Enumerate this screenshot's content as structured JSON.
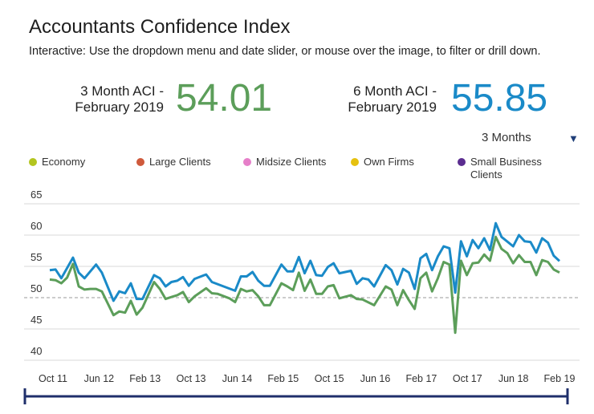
{
  "header": {
    "title": "Accountants Confidence Index",
    "subtitle": "Interactive: Use the dropdown menu and date slider, or mouse over the image, to filter or drill down."
  },
  "stats": [
    {
      "label_line1": "3 Month ACI -",
      "label_line2": "February 2019",
      "value": "54.01",
      "color": "#5c9e5a"
    },
    {
      "label_line1": "6 Month ACI -",
      "label_line2": "February 2019",
      "value": "55.85",
      "color": "#1a8ac8"
    }
  ],
  "dropdown": {
    "selected": "3 Months",
    "icon": "triangle-down-icon"
  },
  "legend": [
    {
      "label": "Economy",
      "color": "#b3c51f"
    },
    {
      "label": "Large Clients",
      "color": "#cf5a3c"
    },
    {
      "label": "Midsize Clients",
      "color": "#e67fc9"
    },
    {
      "label": "Own Firms",
      "color": "#e6c10f"
    },
    {
      "label": "Small Business Clients",
      "color": "#5b2d90"
    }
  ],
  "chart_data": {
    "type": "line",
    "title": "",
    "xlabel": "",
    "ylabel": "",
    "ylim": [
      40,
      65
    ],
    "yticks": [
      65,
      60,
      55,
      50,
      45,
      40
    ],
    "xlim": [
      "2011-10",
      "2019-02"
    ],
    "xticks": [
      "Oct 11",
      "Jun 12",
      "Feb 13",
      "Oct 13",
      "Jun 14",
      "Feb 15",
      "Oct 15",
      "Jun 16",
      "Feb 17",
      "Oct 17",
      "Jun 18",
      "Feb 19"
    ],
    "reference_line": 50,
    "grid": true,
    "series": [
      {
        "color": "#1a8ac8",
        "points": [
          [
            "2011-10",
            54.4
          ],
          [
            "2011-11",
            54.5
          ],
          [
            "2011-12",
            53.1
          ],
          [
            "2012-02",
            56.4
          ],
          [
            "2012-03",
            54.0
          ],
          [
            "2012-04",
            53.1
          ],
          [
            "2012-06",
            55.3
          ],
          [
            "2012-07",
            54.0
          ],
          [
            "2012-09",
            49.5
          ],
          [
            "2012-10",
            51.0
          ],
          [
            "2012-11",
            50.7
          ],
          [
            "2012-12",
            52.3
          ],
          [
            "2013-01",
            49.8
          ],
          [
            "2013-02",
            49.8
          ],
          [
            "2013-04",
            53.6
          ],
          [
            "2013-05",
            53.1
          ],
          [
            "2013-06",
            51.8
          ],
          [
            "2013-07",
            52.5
          ],
          [
            "2013-08",
            52.7
          ],
          [
            "2013-09",
            53.3
          ],
          [
            "2013-10",
            51.9
          ],
          [
            "2013-11",
            53.0
          ],
          [
            "2014-01",
            53.7
          ],
          [
            "2014-02",
            52.5
          ],
          [
            "2014-06",
            51.1
          ],
          [
            "2014-07",
            53.4
          ],
          [
            "2014-08",
            53.4
          ],
          [
            "2014-09",
            54.1
          ],
          [
            "2014-10",
            52.7
          ],
          [
            "2014-11",
            51.9
          ],
          [
            "2014-12",
            51.9
          ],
          [
            "2015-02",
            55.3
          ],
          [
            "2015-03",
            54.2
          ],
          [
            "2015-04",
            54.2
          ],
          [
            "2015-05",
            56.5
          ],
          [
            "2015-06",
            53.9
          ],
          [
            "2015-07",
            55.9
          ],
          [
            "2015-08",
            53.6
          ],
          [
            "2015-09",
            53.5
          ],
          [
            "2015-10",
            54.9
          ],
          [
            "2015-11",
            55.5
          ],
          [
            "2015-12",
            53.9
          ],
          [
            "2016-02",
            54.3
          ],
          [
            "2016-03",
            52.2
          ],
          [
            "2016-04",
            53.1
          ],
          [
            "2016-05",
            52.9
          ],
          [
            "2016-06",
            51.8
          ],
          [
            "2016-08",
            55.2
          ],
          [
            "2016-09",
            54.4
          ],
          [
            "2016-10",
            52.1
          ],
          [
            "2016-11",
            54.6
          ],
          [
            "2016-12",
            54.0
          ],
          [
            "2017-01",
            51.4
          ],
          [
            "2017-02",
            56.3
          ],
          [
            "2017-03",
            57.0
          ],
          [
            "2017-04",
            54.4
          ],
          [
            "2017-05",
            56.6
          ],
          [
            "2017-06",
            58.2
          ],
          [
            "2017-07",
            57.9
          ],
          [
            "2017-08",
            50.8
          ],
          [
            "2017-09",
            59.0
          ],
          [
            "2017-10",
            56.6
          ],
          [
            "2017-11",
            59.2
          ],
          [
            "2017-12",
            57.9
          ],
          [
            "2018-01",
            59.5
          ],
          [
            "2018-02",
            57.6
          ],
          [
            "2018-03",
            61.9
          ],
          [
            "2018-04",
            59.7
          ],
          [
            "2018-06",
            58.2
          ],
          [
            "2018-07",
            60.0
          ],
          [
            "2018-08",
            59.0
          ],
          [
            "2018-09",
            58.9
          ],
          [
            "2018-10",
            57.2
          ],
          [
            "2018-11",
            59.5
          ],
          [
            "2018-12",
            58.8
          ],
          [
            "2019-01",
            56.7
          ],
          [
            "2019-02",
            55.85
          ]
        ]
      },
      {
        "color": "#5c9e5a",
        "points": [
          [
            "2011-10",
            52.9
          ],
          [
            "2011-11",
            52.8
          ],
          [
            "2011-12",
            52.3
          ],
          [
            "2012-01",
            53.2
          ],
          [
            "2012-02",
            55.4
          ],
          [
            "2012-03",
            51.8
          ],
          [
            "2012-04",
            51.3
          ],
          [
            "2012-05",
            51.4
          ],
          [
            "2012-06",
            51.4
          ],
          [
            "2012-07",
            51.0
          ],
          [
            "2012-09",
            47.2
          ],
          [
            "2012-10",
            47.8
          ],
          [
            "2012-11",
            47.6
          ],
          [
            "2012-12",
            49.5
          ],
          [
            "2013-01",
            47.3
          ],
          [
            "2013-02",
            48.4
          ],
          [
            "2013-04",
            52.5
          ],
          [
            "2013-05",
            51.4
          ],
          [
            "2013-06",
            49.8
          ],
          [
            "2013-07",
            50.1
          ],
          [
            "2013-08",
            50.4
          ],
          [
            "2013-09",
            50.9
          ],
          [
            "2013-10",
            49.3
          ],
          [
            "2013-11",
            50.2
          ],
          [
            "2014-01",
            51.5
          ],
          [
            "2014-02",
            50.7
          ],
          [
            "2014-03",
            50.6
          ],
          [
            "2014-05",
            49.9
          ],
          [
            "2014-06",
            49.3
          ],
          [
            "2014-07",
            51.4
          ],
          [
            "2014-08",
            51.0
          ],
          [
            "2014-09",
            51.2
          ],
          [
            "2014-10",
            50.2
          ],
          [
            "2014-11",
            48.8
          ],
          [
            "2014-12",
            48.8
          ],
          [
            "2015-02",
            52.3
          ],
          [
            "2015-03",
            51.8
          ],
          [
            "2015-04",
            51.2
          ],
          [
            "2015-05",
            54.0
          ],
          [
            "2015-06",
            51.1
          ],
          [
            "2015-07",
            52.9
          ],
          [
            "2015-08",
            50.6
          ],
          [
            "2015-09",
            50.6
          ],
          [
            "2015-10",
            51.8
          ],
          [
            "2015-11",
            52.0
          ],
          [
            "2015-12",
            49.9
          ],
          [
            "2016-02",
            50.4
          ],
          [
            "2016-03",
            49.8
          ],
          [
            "2016-04",
            49.7
          ],
          [
            "2016-06",
            48.8
          ],
          [
            "2016-08",
            51.8
          ],
          [
            "2016-09",
            51.3
          ],
          [
            "2016-10",
            48.8
          ],
          [
            "2016-11",
            51.2
          ],
          [
            "2016-12",
            49.6
          ],
          [
            "2017-01",
            48.2
          ],
          [
            "2017-02",
            53.1
          ],
          [
            "2017-03",
            54.0
          ],
          [
            "2017-04",
            51.0
          ],
          [
            "2017-05",
            53.1
          ],
          [
            "2017-06",
            55.7
          ],
          [
            "2017-07",
            55.3
          ],
          [
            "2017-08",
            44.4
          ],
          [
            "2017-09",
            55.9
          ],
          [
            "2017-10",
            53.6
          ],
          [
            "2017-11",
            55.5
          ],
          [
            "2017-12",
            55.6
          ],
          [
            "2018-01",
            56.9
          ],
          [
            "2018-02",
            55.9
          ],
          [
            "2018-03",
            59.7
          ],
          [
            "2018-04",
            57.8
          ],
          [
            "2018-05",
            57.1
          ],
          [
            "2018-06",
            55.5
          ],
          [
            "2018-07",
            56.8
          ],
          [
            "2018-08",
            55.7
          ],
          [
            "2018-09",
            55.7
          ],
          [
            "2018-10",
            53.6
          ],
          [
            "2018-11",
            56.0
          ],
          [
            "2018-12",
            55.7
          ],
          [
            "2019-01",
            54.5
          ],
          [
            "2019-02",
            54.01
          ]
        ]
      }
    ]
  },
  "slider": {
    "start": "Oct 11",
    "end": "Feb 19",
    "color": "#1f2f6b"
  }
}
